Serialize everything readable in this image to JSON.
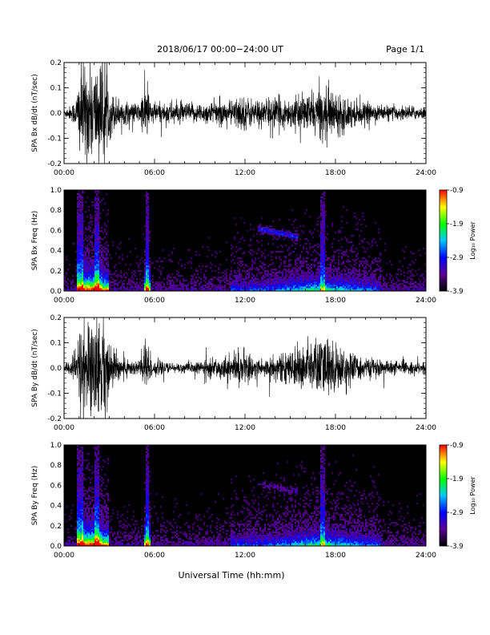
{
  "header": {
    "title": "2018/06/17  00:00−24:00 UT",
    "page": "Page 1/1"
  },
  "xlabel": "Universal Time (hh:mm)",
  "chart_data": [
    {
      "type": "line",
      "ylabel": "SPA Bx dB/dt (nT/sec)",
      "xlim": [
        0,
        24
      ],
      "ylim": [
        -0.2,
        0.2
      ],
      "x_ticks": [
        "00:00",
        "06:00",
        "12:00",
        "18:00",
        "24:00"
      ],
      "y_ticks": [
        "-0.2",
        "-0.1",
        "0.0",
        "0.1",
        "0.2"
      ],
      "envelope": {
        "hours": [
          0,
          0.5,
          0.8,
          1.0,
          1.3,
          1.6,
          2.0,
          2.3,
          2.7,
          3.0,
          3.5,
          4.0,
          4.5,
          5.0,
          5.4,
          5.6,
          5.8,
          6.5,
          7.0,
          8.0,
          9.0,
          10.0,
          11.0,
          11.7,
          12.5,
          13.0,
          14.0,
          15.0,
          16.0,
          17.0,
          17.5,
          18.0,
          19.0,
          20.0,
          21.0,
          22.0,
          23.0,
          24.0
        ],
        "amplitude": [
          0.02,
          0.04,
          0.08,
          0.22,
          0.25,
          0.25,
          0.25,
          0.25,
          0.25,
          0.12,
          0.08,
          0.06,
          0.05,
          0.05,
          0.15,
          0.12,
          0.06,
          0.05,
          0.06,
          0.05,
          0.05,
          0.06,
          0.06,
          0.09,
          0.07,
          0.07,
          0.08,
          0.07,
          0.09,
          0.12,
          0.13,
          0.11,
          0.07,
          0.05,
          0.04,
          0.035,
          0.035,
          0.03
        ]
      }
    },
    {
      "type": "heatmap",
      "ylabel": "SPA Bx Freq (Hz)",
      "xlim": [
        0,
        24
      ],
      "ylim": [
        0,
        1.0
      ],
      "x_ticks": [
        "00:00",
        "06:00",
        "12:00",
        "18:00",
        "24:00"
      ],
      "y_ticks": [
        "0.0",
        "0.2",
        "0.4",
        "0.6",
        "0.8",
        "1.0"
      ],
      "colorbar": {
        "label": "Log₁₀ Power",
        "range": [
          -3.9,
          -0.9
        ],
        "ticks": [
          "-0.9",
          "-1.9",
          "-2.9",
          "-3.9"
        ]
      }
    },
    {
      "type": "line",
      "ylabel": "SPA By dB/dt (nT/sec)",
      "xlim": [
        0,
        24
      ],
      "ylim": [
        -0.2,
        0.2
      ],
      "x_ticks": [
        "00:00",
        "06:00",
        "12:00",
        "18:00",
        "24:00"
      ],
      "y_ticks": [
        "-0.2",
        "-0.1",
        "0.0",
        "0.1",
        "0.2"
      ],
      "envelope": {
        "hours": [
          0,
          0.5,
          0.8,
          1.0,
          1.3,
          1.6,
          2.0,
          2.3,
          2.7,
          3.0,
          3.5,
          4.0,
          4.5,
          5.0,
          5.4,
          5.6,
          5.8,
          6.5,
          7.0,
          8.0,
          9.0,
          10.0,
          11.0,
          11.7,
          12.5,
          13.0,
          14.0,
          15.0,
          16.0,
          17.0,
          17.5,
          18.0,
          19.0,
          20.0,
          21.0,
          22.0,
          23.0,
          24.0
        ],
        "amplitude": [
          0.02,
          0.05,
          0.09,
          0.22,
          0.25,
          0.25,
          0.25,
          0.25,
          0.25,
          0.12,
          0.08,
          0.05,
          0.04,
          0.05,
          0.16,
          0.12,
          0.05,
          0.03,
          0.025,
          0.025,
          0.03,
          0.05,
          0.06,
          0.09,
          0.06,
          0.05,
          0.06,
          0.08,
          0.12,
          0.15,
          0.16,
          0.12,
          0.08,
          0.05,
          0.04,
          0.035,
          0.03,
          0.03
        ]
      }
    },
    {
      "type": "heatmap",
      "ylabel": "SPA By Freq (Hz)",
      "xlim": [
        0,
        24
      ],
      "ylim": [
        0,
        1.0
      ],
      "x_ticks": [
        "00:00",
        "06:00",
        "12:00",
        "18:00",
        "24:00"
      ],
      "y_ticks": [
        "0.0",
        "0.2",
        "0.4",
        "0.6",
        "0.8",
        "1.0"
      ],
      "colorbar": {
        "label": "Log₁₀ Power",
        "range": [
          -3.9,
          -0.9
        ],
        "ticks": [
          "-0.9",
          "-1.9",
          "-2.9",
          "-3.9"
        ]
      }
    }
  ]
}
